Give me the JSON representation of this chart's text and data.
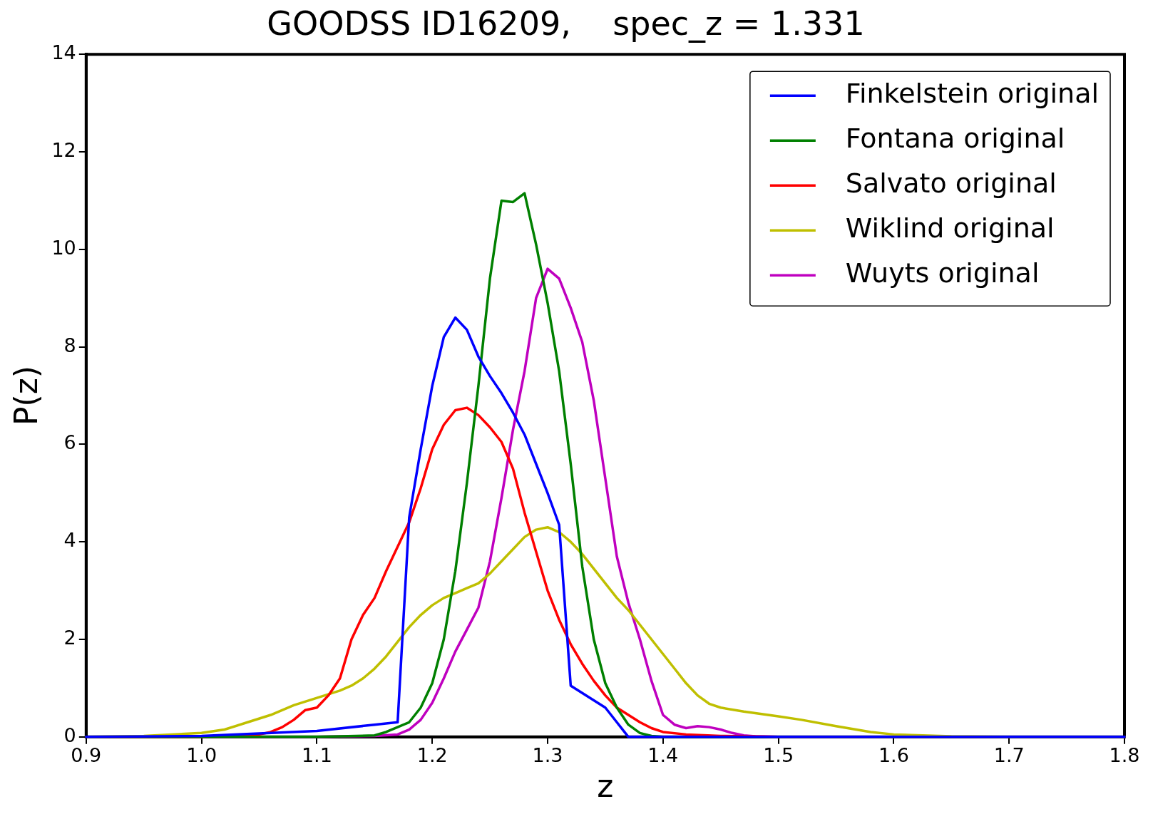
{
  "chart_data": {
    "type": "line",
    "title": "GOODSS ID16209,    spec_z = 1.331",
    "xlabel": "z",
    "ylabel": "P(z)",
    "xlim": [
      0.9,
      1.8
    ],
    "xticks": [
      0.9,
      {
        "value": 1,
        "label": "1.0"
      },
      1.1,
      1.2,
      1.3,
      1.4,
      1.5,
      1.6,
      1.7,
      {
        "value": 1.8,
        "label": "1.8"
      }
    ],
    "ylim": [
      0,
      14
    ],
    "yticks": [
      0,
      2,
      4,
      6,
      8,
      10,
      12,
      14
    ],
    "grid": false,
    "legend": "top right",
    "marker": "none",
    "line_style": "solid",
    "series": [
      {
        "name": "Finkelstein original",
        "color": "#0000ff",
        "x": [
          0.9,
          1.0,
          1.1,
          1.15,
          1.17,
          1.18,
          1.19,
          1.2,
          1.21,
          1.22,
          1.23,
          1.24,
          1.25,
          1.26,
          1.27,
          1.28,
          1.29,
          1.3,
          1.31,
          1.32,
          1.33,
          1.34,
          1.35,
          1.36,
          1.37,
          1.8
        ],
        "values": [
          0,
          0.02,
          0.12,
          0.25,
          0.3,
          4.5,
          5.9,
          7.2,
          8.2,
          8.6,
          8.35,
          7.8,
          7.4,
          7.05,
          6.65,
          6.2,
          5.6,
          5.0,
          4.35,
          1.05,
          0.9,
          0.75,
          0.6,
          0.3,
          0,
          0
        ]
      },
      {
        "name": "Fontana original",
        "color": "#008000",
        "x": [
          0.9,
          1.1,
          1.15,
          1.16,
          1.17,
          1.18,
          1.19,
          1.2,
          1.21,
          1.22,
          1.23,
          1.24,
          1.25,
          1.26,
          1.27,
          1.28,
          1.29,
          1.3,
          1.31,
          1.32,
          1.33,
          1.34,
          1.35,
          1.36,
          1.37,
          1.38,
          1.39,
          1.4,
          1.8
        ],
        "values": [
          0,
          0,
          0.03,
          0.1,
          0.2,
          0.3,
          0.6,
          1.1,
          2.0,
          3.4,
          5.2,
          7.2,
          9.4,
          11.0,
          10.97,
          11.15,
          10.1,
          8.9,
          7.5,
          5.6,
          3.5,
          2.0,
          1.1,
          0.6,
          0.25,
          0.08,
          0.02,
          0,
          0
        ]
      },
      {
        "name": "Salvato original",
        "color": "#ff0000",
        "x": [
          0.9,
          1.0,
          1.05,
          1.06,
          1.07,
          1.08,
          1.09,
          1.1,
          1.11,
          1.12,
          1.13,
          1.14,
          1.15,
          1.16,
          1.17,
          1.18,
          1.19,
          1.2,
          1.21,
          1.22,
          1.23,
          1.24,
          1.25,
          1.26,
          1.27,
          1.28,
          1.29,
          1.3,
          1.31,
          1.32,
          1.33,
          1.34,
          1.35,
          1.36,
          1.37,
          1.38,
          1.39,
          1.4,
          1.42,
          1.45,
          1.5,
          1.8
        ],
        "values": [
          0,
          0,
          0.05,
          0.1,
          0.2,
          0.35,
          0.55,
          0.6,
          0.85,
          1.2,
          2.0,
          2.5,
          2.85,
          3.4,
          3.9,
          4.4,
          5.1,
          5.9,
          6.4,
          6.7,
          6.75,
          6.6,
          6.35,
          6.05,
          5.5,
          4.6,
          3.8,
          3.0,
          2.4,
          1.9,
          1.5,
          1.15,
          0.85,
          0.6,
          0.45,
          0.3,
          0.18,
          0.1,
          0.05,
          0.02,
          0,
          0
        ]
      },
      {
        "name": "Wiklind original",
        "color": "#bfbf00",
        "x": [
          0.9,
          0.95,
          1.0,
          1.02,
          1.04,
          1.06,
          1.08,
          1.1,
          1.12,
          1.13,
          1.14,
          1.15,
          1.16,
          1.17,
          1.18,
          1.19,
          1.2,
          1.21,
          1.22,
          1.23,
          1.24,
          1.25,
          1.26,
          1.27,
          1.28,
          1.29,
          1.3,
          1.31,
          1.32,
          1.33,
          1.34,
          1.35,
          1.36,
          1.37,
          1.38,
          1.39,
          1.4,
          1.41,
          1.42,
          1.43,
          1.44,
          1.45,
          1.47,
          1.5,
          1.52,
          1.55,
          1.58,
          1.6,
          1.65,
          1.7,
          1.8
        ],
        "values": [
          0,
          0.02,
          0.08,
          0.15,
          0.3,
          0.45,
          0.65,
          0.8,
          0.95,
          1.05,
          1.2,
          1.4,
          1.65,
          1.95,
          2.25,
          2.5,
          2.7,
          2.85,
          2.95,
          3.05,
          3.15,
          3.35,
          3.6,
          3.85,
          4.1,
          4.25,
          4.3,
          4.2,
          4.0,
          3.75,
          3.45,
          3.15,
          2.85,
          2.6,
          2.3,
          2.0,
          1.7,
          1.4,
          1.1,
          0.85,
          0.68,
          0.6,
          0.52,
          0.42,
          0.35,
          0.22,
          0.1,
          0.05,
          0.01,
          0,
          0
        ]
      },
      {
        "name": "Wuyts original",
        "color": "#bf00bf",
        "x": [
          0.9,
          1.1,
          1.15,
          1.17,
          1.18,
          1.19,
          1.2,
          1.21,
          1.22,
          1.23,
          1.24,
          1.25,
          1.26,
          1.27,
          1.28,
          1.29,
          1.3,
          1.31,
          1.32,
          1.33,
          1.34,
          1.35,
          1.36,
          1.37,
          1.38,
          1.39,
          1.4,
          1.41,
          1.42,
          1.43,
          1.44,
          1.45,
          1.46,
          1.47,
          1.48,
          1.5,
          1.8
        ],
        "values": [
          0,
          0,
          0.02,
          0.05,
          0.15,
          0.35,
          0.7,
          1.2,
          1.75,
          2.2,
          2.65,
          3.6,
          4.9,
          6.3,
          7.5,
          9.0,
          9.6,
          9.4,
          8.8,
          8.1,
          6.9,
          5.3,
          3.7,
          2.75,
          2.0,
          1.15,
          0.45,
          0.25,
          0.18,
          0.22,
          0.2,
          0.15,
          0.08,
          0.03,
          0.01,
          0,
          0
        ]
      }
    ]
  }
}
